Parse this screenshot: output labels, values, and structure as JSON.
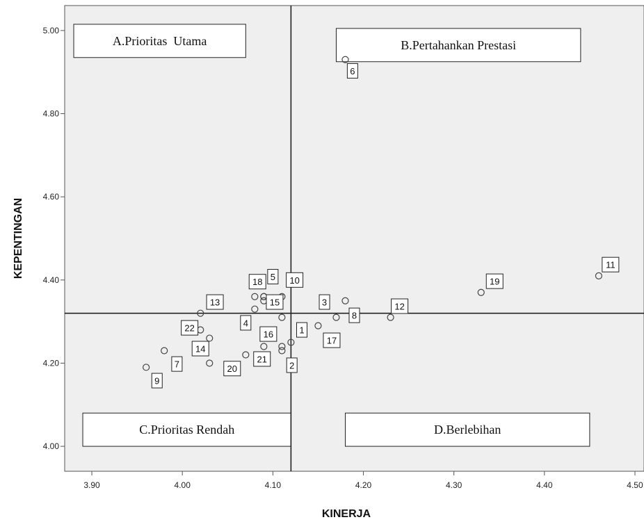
{
  "chart_data": {
    "type": "scatter",
    "title": "",
    "xlabel": "KINERJA",
    "ylabel": "KEPENTINGAN",
    "xlim": [
      3.87,
      4.51
    ],
    "ylim": [
      3.94,
      5.06
    ],
    "xticks": [
      "3.90",
      "4.00",
      "4.10",
      "4.20",
      "4.30",
      "4.40",
      "4.50"
    ],
    "yticks": [
      "4.00",
      "4.20",
      "4.40",
      "4.60",
      "4.80",
      "5.00"
    ],
    "x_ref": 4.12,
    "y_ref": 4.32,
    "grid": false,
    "quadrants": [
      {
        "label": "A.Prioritas  Utama",
        "x1": 3.88,
        "x2": 4.07,
        "y1": 4.935,
        "y2": 5.015
      },
      {
        "label": "B.Pertahankan Prestasi",
        "x1": 4.17,
        "x2": 4.44,
        "y1": 4.925,
        "y2": 5.005
      },
      {
        "label": "C.Prioritas Rendah",
        "x1": 3.89,
        "x2": 4.12,
        "y1": 4.0,
        "y2": 4.08
      },
      {
        "label": "D.Berlebihan",
        "x1": 4.18,
        "x2": 4.45,
        "y1": 4.0,
        "y2": 4.08
      }
    ],
    "points": [
      {
        "id": "1",
        "x": 4.12,
        "y": 4.25,
        "lx": 4.132,
        "ly": 4.28
      },
      {
        "id": "2",
        "x": 4.11,
        "y": 4.23,
        "lx": 4.121,
        "ly": 4.195
      },
      {
        "id": "3",
        "x": 4.15,
        "y": 4.29,
        "lx": 4.157,
        "ly": 4.347
      },
      {
        "id": "4",
        "x": 4.11,
        "y": 4.31,
        "lx": 4.07,
        "ly": 4.297
      },
      {
        "id": "5",
        "x": 4.09,
        "y": 4.36,
        "lx": 4.1,
        "ly": 4.408
      },
      {
        "id": "6",
        "x": 4.18,
        "y": 4.93,
        "lx": 4.188,
        "ly": 4.903
      },
      {
        "id": "7",
        "x": 3.98,
        "y": 4.23,
        "lx": 3.994,
        "ly": 4.198
      },
      {
        "id": "8",
        "x": 4.18,
        "y": 4.35,
        "lx": 4.19,
        "ly": 4.315
      },
      {
        "id": "9",
        "x": 3.96,
        "y": 4.19,
        "lx": 3.972,
        "ly": 4.158
      },
      {
        "id": "10",
        "x": 4.11,
        "y": 4.36,
        "lx": 4.124,
        "ly": 4.4
      },
      {
        "id": "11",
        "x": 4.46,
        "y": 4.41,
        "lx": 4.473,
        "ly": 4.437
      },
      {
        "id": "12",
        "x": 4.23,
        "y": 4.31,
        "lx": 4.24,
        "ly": 4.337
      },
      {
        "id": "13",
        "x": 4.02,
        "y": 4.32,
        "lx": 4.036,
        "ly": 4.347
      },
      {
        "id": "14",
        "x": 4.03,
        "y": 4.26,
        "lx": 4.02,
        "ly": 4.235
      },
      {
        "id": "15",
        "x": 4.09,
        "y": 4.35,
        "lx": 4.102,
        "ly": 4.347
      },
      {
        "id": "16",
        "x": 4.09,
        "y": 4.24,
        "lx": 4.095,
        "ly": 4.27
      },
      {
        "id": "17",
        "x": 4.17,
        "y": 4.31,
        "lx": 4.165,
        "ly": 4.255
      },
      {
        "id": "18",
        "x": 4.08,
        "y": 4.36,
        "lx": 4.083,
        "ly": 4.396
      },
      {
        "id": "19",
        "x": 4.33,
        "y": 4.37,
        "lx": 4.345,
        "ly": 4.397
      },
      {
        "id": "20",
        "x": 4.03,
        "y": 4.2,
        "lx": 4.055,
        "ly": 4.187
      },
      {
        "id": "21",
        "x": 4.07,
        "y": 4.22,
        "lx": 4.088,
        "ly": 4.21
      },
      {
        "id": "22",
        "x": 4.02,
        "y": 4.28,
        "lx": 4.008,
        "ly": 4.285
      },
      {
        "id": "",
        "x": 4.08,
        "y": 4.33
      },
      {
        "id": "",
        "x": 4.11,
        "y": 4.24
      },
      {
        "id": "",
        "x": 4.09,
        "y": 4.36
      }
    ]
  }
}
